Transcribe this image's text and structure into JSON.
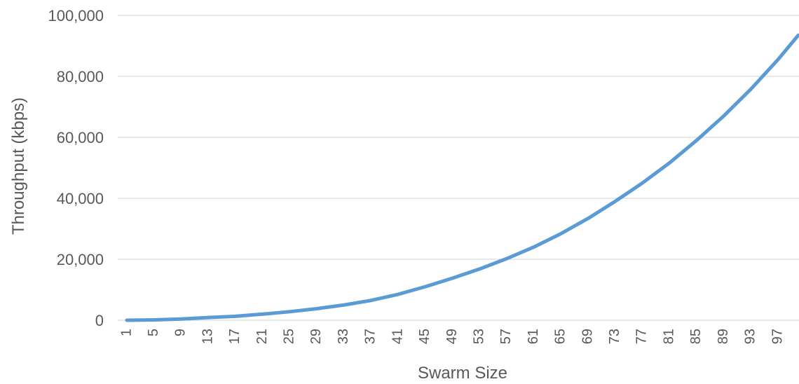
{
  "chart_data": {
    "type": "line",
    "title": "",
    "xlabel": "Swarm Size",
    "ylabel": "Throughput (kbps)",
    "x_tick_labels": [
      "1",
      "5",
      "9",
      "13",
      "17",
      "21",
      "25",
      "29",
      "33",
      "37",
      "41",
      "45",
      "49",
      "53",
      "57",
      "61",
      "65",
      "69",
      "73",
      "77",
      "81",
      "85",
      "89",
      "93",
      "97"
    ],
    "y_tick_labels": [
      "0",
      "20,000",
      "40,000",
      "60,000",
      "80,000",
      "100,000"
    ],
    "ylim": [
      0,
      100000
    ],
    "xlim": [
      1,
      100
    ],
    "grid": true,
    "legend": "none",
    "series": [
      {
        "color": "#5b9bd5",
        "points": [
          [
            1,
            0
          ],
          [
            5,
            120
          ],
          [
            9,
            400
          ],
          [
            13,
            900
          ],
          [
            17,
            1300
          ],
          [
            21,
            2000
          ],
          [
            25,
            2800
          ],
          [
            29,
            3800
          ],
          [
            33,
            5000
          ],
          [
            37,
            6500
          ],
          [
            41,
            8500
          ],
          [
            45,
            11000
          ],
          [
            49,
            13800
          ],
          [
            53,
            16800
          ],
          [
            57,
            20200
          ],
          [
            61,
            24000
          ],
          [
            65,
            28400
          ],
          [
            69,
            33400
          ],
          [
            73,
            39000
          ],
          [
            77,
            45000
          ],
          [
            81,
            51600
          ],
          [
            85,
            59000
          ],
          [
            89,
            67000
          ],
          [
            93,
            75800
          ],
          [
            97,
            85500
          ],
          [
            100,
            93500
          ]
        ]
      }
    ]
  }
}
